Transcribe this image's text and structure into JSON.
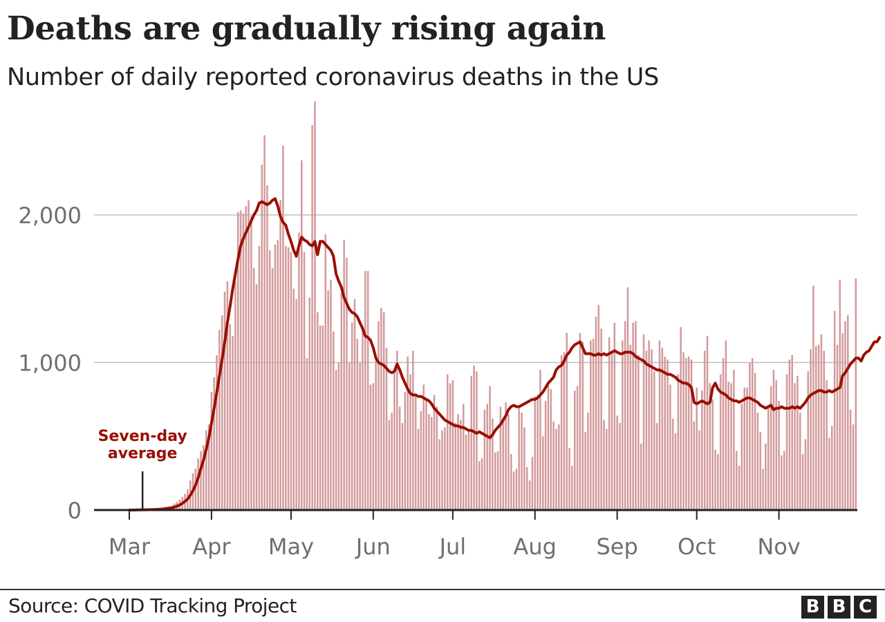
{
  "header": {
    "title": "Deaths are gradually rising again",
    "subtitle": "Number of daily reported coronavirus deaths in the US"
  },
  "footer": {
    "source": "Source: COVID Tracking Project",
    "logo_letters": [
      "B",
      "B",
      "C"
    ]
  },
  "colors": {
    "bar": "#d39a9c",
    "line": "#990f02",
    "grid": "#bdbdbd",
    "axis": "#222222",
    "tick_text": "#6e6e73"
  },
  "chart_data": {
    "type": "bar",
    "title": "Deaths are gradually rising again",
    "subtitle": "Number of daily reported coronavirus deaths in the US",
    "xlabel": "",
    "ylabel": "",
    "start_date": "Mar 1",
    "end_date": "Nov 16",
    "ylim": [
      0,
      2800
    ],
    "yticks": [
      0,
      1000,
      2000
    ],
    "ytick_labels": [
      "0",
      "1,000",
      "2,000"
    ],
    "grid": true,
    "xticks": [
      {
        "label": "Mar",
        "day": 0
      },
      {
        "label": "Apr",
        "day": 31
      },
      {
        "label": "May",
        "day": 61
      },
      {
        "label": "Jun",
        "day": 92
      },
      {
        "label": "Jul",
        "day": 122
      },
      {
        "label": "Aug",
        "day": 153
      },
      {
        "label": "Sep",
        "day": 184
      },
      {
        "label": "Oct",
        "day": 214
      },
      {
        "label": "Nov",
        "day": 245
      }
    ],
    "annotation": {
      "text_lines": [
        "Seven-day",
        "average"
      ],
      "day": 5
    },
    "series": [
      {
        "name": "Daily deaths",
        "kind": "bar",
        "values": [
          0,
          1,
          1,
          2,
          3,
          2,
          3,
          4,
          5,
          6,
          8,
          10,
          12,
          15,
          22,
          25,
          30,
          45,
          55,
          70,
          90,
          110,
          140,
          200,
          250,
          280,
          350,
          400,
          440,
          540,
          580,
          800,
          900,
          1050,
          1220,
          1320,
          1480,
          1550,
          1260,
          1180,
          1550,
          2020,
          2030,
          2010,
          2060,
          2100,
          1990,
          1640,
          1530,
          1790,
          2340,
          2540,
          2200,
          1760,
          1640,
          1800,
          1830,
          2100,
          2470,
          1790,
          1780,
          1750,
          1500,
          1430,
          1880,
          2370,
          1750,
          1030,
          1440,
          2610,
          2770,
          1340,
          1250,
          1250,
          1870,
          1490,
          1560,
          1210,
          950,
          1000,
          1470,
          1830,
          1710,
          1000,
          1270,
          1430,
          1160,
          1000,
          1250,
          1620,
          1620,
          850,
          860,
          1020,
          1280,
          1370,
          1340,
          1100,
          610,
          660,
          930,
          1080,
          700,
          590,
          800,
          1040,
          920,
          1080,
          790,
          550,
          670,
          850,
          750,
          650,
          630,
          780,
          700,
          480,
          540,
          560,
          920,
          860,
          880,
          590,
          650,
          610,
          720,
          510,
          530,
          910,
          980,
          940,
          330,
          350,
          680,
          720,
          840,
          620,
          390,
          400,
          700,
          610,
          730,
          650,
          380,
          260,
          280,
          690,
          660,
          560,
          290,
          200,
          360,
          770,
          780,
          950,
          500,
          740,
          850,
          820,
          600,
          550,
          580,
          1050,
          1070,
          1200,
          420,
          300,
          810,
          840,
          1200,
          1140,
          530,
          660,
          1150,
          1160,
          1310,
          1390,
          1230,
          610,
          550,
          1170,
          1060,
          1270,
          640,
          590,
          1150,
          1280,
          1510,
          1120,
          1270,
          1280,
          1050,
          450,
          1190,
          1080,
          1150,
          1090,
          940,
          590,
          1150,
          1100,
          1040,
          1020,
          850,
          620,
          520,
          920,
          1240,
          1070,
          1030,
          1040,
          1020,
          600,
          830,
          540,
          810,
          1080,
          1180,
          860,
          750,
          410,
          380,
          920,
          1030,
          1150,
          870,
          860,
          950,
          400,
          300,
          720,
          830,
          830,
          1000,
          1030,
          930,
          660,
          530,
          280,
          450,
          710,
          840,
          950,
          880,
          740,
          370,
          400,
          920,
          1020,
          1050,
          860,
          910,
          660,
          380,
          480,
          940,
          1090,
          1520,
          1110,
          1120,
          1190,
          1080,
          880,
          490,
          570,
          1350,
          1120,
          1560,
          1200,
          1280,
          1320,
          680,
          580,
          1570
        ]
      },
      {
        "name": "Seven-day average",
        "kind": "line",
        "values": [
          0,
          0,
          0,
          1,
          1,
          1,
          2,
          2,
          3,
          3,
          4,
          5,
          6,
          8,
          10,
          12,
          15,
          20,
          26,
          34,
          45,
          58,
          75,
          100,
          130,
          170,
          220,
          280,
          340,
          410,
          490,
          590,
          690,
          800,
          910,
          1020,
          1140,
          1270,
          1380,
          1500,
          1600,
          1700,
          1790,
          1840,
          1880,
          1920,
          1960,
          2000,
          2030,
          2080,
          2090,
          2080,
          2070,
          2080,
          2100,
          2110,
          2060,
          1990,
          1950,
          1930,
          1870,
          1820,
          1760,
          1720,
          1790,
          1850,
          1830,
          1820,
          1800,
          1790,
          1820,
          1730,
          1820,
          1820,
          1800,
          1780,
          1760,
          1720,
          1600,
          1550,
          1510,
          1440,
          1400,
          1360,
          1340,
          1330,
          1310,
          1270,
          1230,
          1180,
          1170,
          1150,
          1100,
          1030,
          1000,
          990,
          980,
          960,
          940,
          930,
          940,
          990,
          950,
          900,
          860,
          820,
          790,
          780,
          780,
          770,
          770,
          760,
          750,
          740,
          720,
          690,
          670,
          650,
          630,
          610,
          600,
          590,
          580,
          570,
          570,
          560,
          560,
          550,
          540,
          540,
          530,
          520,
          530,
          520,
          510,
          500,
          490,
          510,
          540,
          560,
          580,
          610,
          640,
          680,
          700,
          710,
          700,
          700,
          710,
          720,
          730,
          740,
          750,
          750,
          760,
          780,
          800,
          830,
          860,
          880,
          900,
          950,
          970,
          980,
          1010,
          1050,
          1070,
          1100,
          1120,
          1130,
          1140,
          1100,
          1060,
          1060,
          1060,
          1050,
          1050,
          1060,
          1050,
          1060,
          1050,
          1060,
          1070,
          1080,
          1070,
          1060,
          1060,
          1070,
          1070,
          1070,
          1060,
          1040,
          1030,
          1020,
          1010,
          990,
          980,
          970,
          960,
          950,
          950,
          940,
          930,
          920,
          920,
          910,
          900,
          880,
          870,
          860,
          860,
          850,
          830,
          730,
          720,
          730,
          740,
          730,
          720,
          730,
          830,
          860,
          820,
          800,
          790,
          780,
          760,
          750,
          740,
          740,
          730,
          740,
          750,
          760,
          760,
          750,
          740,
          730,
          710,
          700,
          690,
          700,
          710,
          680,
          690,
          690,
          700,
          690,
          690,
          690,
          700,
          690,
          700,
          690,
          710,
          730,
          760,
          780,
          790,
          800,
          810,
          810,
          800,
          800,
          810,
          800,
          810,
          820,
          830,
          910,
          930,
          960,
          990,
          1010,
          1030,
          1030,
          1010,
          1050,
          1070,
          1080,
          1110,
          1140,
          1140,
          1170
        ]
      }
    ]
  }
}
